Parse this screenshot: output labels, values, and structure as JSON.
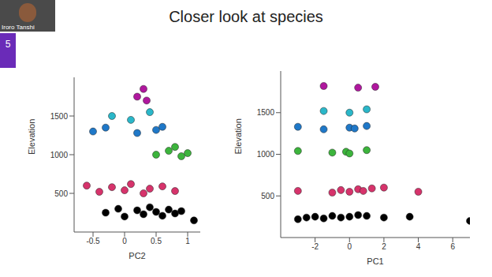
{
  "header": {
    "presenter": "Iroro Tanshi",
    "slide_number": "5",
    "title": "Closer look at species"
  },
  "chart_data": [
    {
      "type": "scatter",
      "xlabel": "PC2",
      "ylabel": "Elevation",
      "xlim": [
        -0.8,
        1.2
      ],
      "xticks": [
        -0.5,
        0,
        0.5,
        1
      ],
      "ylim": [
        0,
        2000
      ],
      "yticks": [
        500,
        1000,
        1500
      ],
      "grid": false,
      "series": [
        {
          "color": "#b0179e",
          "x": [
            0.2,
            0.3,
            0.35
          ],
          "y": [
            1750,
            1850,
            1700
          ]
        },
        {
          "color": "#2ab7c9",
          "x": [
            -0.2,
            0.1,
            0.4
          ],
          "y": [
            1500,
            1450,
            1550
          ]
        },
        {
          "color": "#1f78c8",
          "x": [
            -0.5,
            -0.3,
            0.2,
            0.5,
            0.6
          ],
          "y": [
            1300,
            1350,
            1280,
            1320,
            1360
          ]
        },
        {
          "color": "#3cb43c",
          "x": [
            0.5,
            0.7,
            0.8,
            0.9,
            1.0
          ],
          "y": [
            1000,
            1050,
            1100,
            980,
            1020
          ]
        },
        {
          "color": "#d6336b",
          "x": [
            -0.6,
            -0.4,
            -0.2,
            0,
            0.1,
            0.3,
            0.4,
            0.6,
            0.8
          ],
          "y": [
            600,
            520,
            580,
            540,
            620,
            500,
            560,
            590,
            530
          ]
        },
        {
          "color": "#000000",
          "x": [
            -0.3,
            -0.1,
            0,
            0.2,
            0.3,
            0.4,
            0.5,
            0.6,
            0.7,
            0.8,
            0.9,
            1.1
          ],
          "y": [
            250,
            300,
            200,
            280,
            230,
            320,
            260,
            210,
            290,
            240,
            270,
            150
          ]
        }
      ]
    },
    {
      "type": "scatter",
      "xlabel": "PC1",
      "ylabel": "Elevation",
      "xlim": [
        -4,
        7
      ],
      "xticks": [
        -2,
        0,
        2,
        4,
        6
      ],
      "ylim": [
        0,
        2000
      ],
      "yticks": [
        500,
        1000,
        1500
      ],
      "grid": false,
      "series": [
        {
          "color": "#b0179e",
          "x": [
            -1.5,
            0.5,
            1.5
          ],
          "y": [
            1820,
            1800,
            1810
          ]
        },
        {
          "color": "#2ab7c9",
          "x": [
            -1.5,
            0,
            1
          ],
          "y": [
            1520,
            1500,
            1540
          ]
        },
        {
          "color": "#1f78c8",
          "x": [
            -3,
            -1.5,
            0,
            0.3,
            1
          ],
          "y": [
            1330,
            1300,
            1320,
            1310,
            1340
          ]
        },
        {
          "color": "#3cb43c",
          "x": [
            -3,
            -1,
            -0.2,
            0,
            1
          ],
          "y": [
            1040,
            1020,
            1030,
            1010,
            1050
          ]
        },
        {
          "color": "#d6336b",
          "x": [
            -3,
            -1,
            -0.5,
            0,
            0.5,
            0.8,
            1.3,
            2,
            4
          ],
          "y": [
            560,
            540,
            570,
            550,
            580,
            560,
            590,
            600,
            550
          ]
        },
        {
          "color": "#000000",
          "x": [
            -3,
            -2.5,
            -2,
            -1.5,
            -1,
            -0.5,
            0,
            0.5,
            1,
            2,
            3.5,
            7
          ],
          "y": [
            220,
            240,
            250,
            230,
            260,
            240,
            250,
            270,
            260,
            240,
            250,
            200
          ]
        }
      ]
    }
  ]
}
